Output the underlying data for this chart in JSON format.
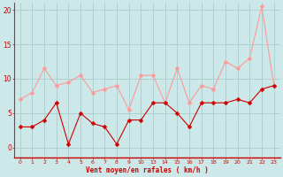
{
  "x_indices": [
    0,
    1,
    2,
    3,
    4,
    5,
    6,
    7,
    8,
    9,
    10,
    11,
    12,
    13,
    14,
    15,
    16,
    17,
    18,
    19,
    20,
    21
  ],
  "x_labels": [
    "0",
    "1",
    "2",
    "3",
    "4",
    "5",
    "6",
    "7",
    "8",
    "9",
    "10",
    "13",
    "14",
    "15",
    "16",
    "17",
    "18",
    "19",
    "20",
    "21",
    "22",
    "23"
  ],
  "mean_wind": [
    3,
    3,
    4,
    6.5,
    0.5,
    5,
    3.5,
    3,
    0.5,
    4,
    4,
    6.5,
    6.5,
    5,
    3,
    6.5,
    6.5,
    6.5,
    7,
    6.5,
    8.5,
    9
  ],
  "gust_wind": [
    7,
    8,
    11.5,
    9,
    9.5,
    10.5,
    8,
    8.5,
    9,
    5.5,
    10.5,
    10.5,
    6.5,
    11.5,
    6.5,
    9,
    8.5,
    12.5,
    11.5,
    13,
    20.5,
    9
  ],
  "bg_color": "#cce8e8",
  "grid_color": "#aacccc",
  "mean_color": "#cc0000",
  "gust_color": "#ff9999",
  "xlabel": "Vent moyen/en rafales ( km/h )",
  "ylim": [
    -1.5,
    21
  ],
  "yticks": [
    0,
    5,
    10,
    15,
    20
  ],
  "marker_size": 2.5,
  "linewidth": 0.8
}
